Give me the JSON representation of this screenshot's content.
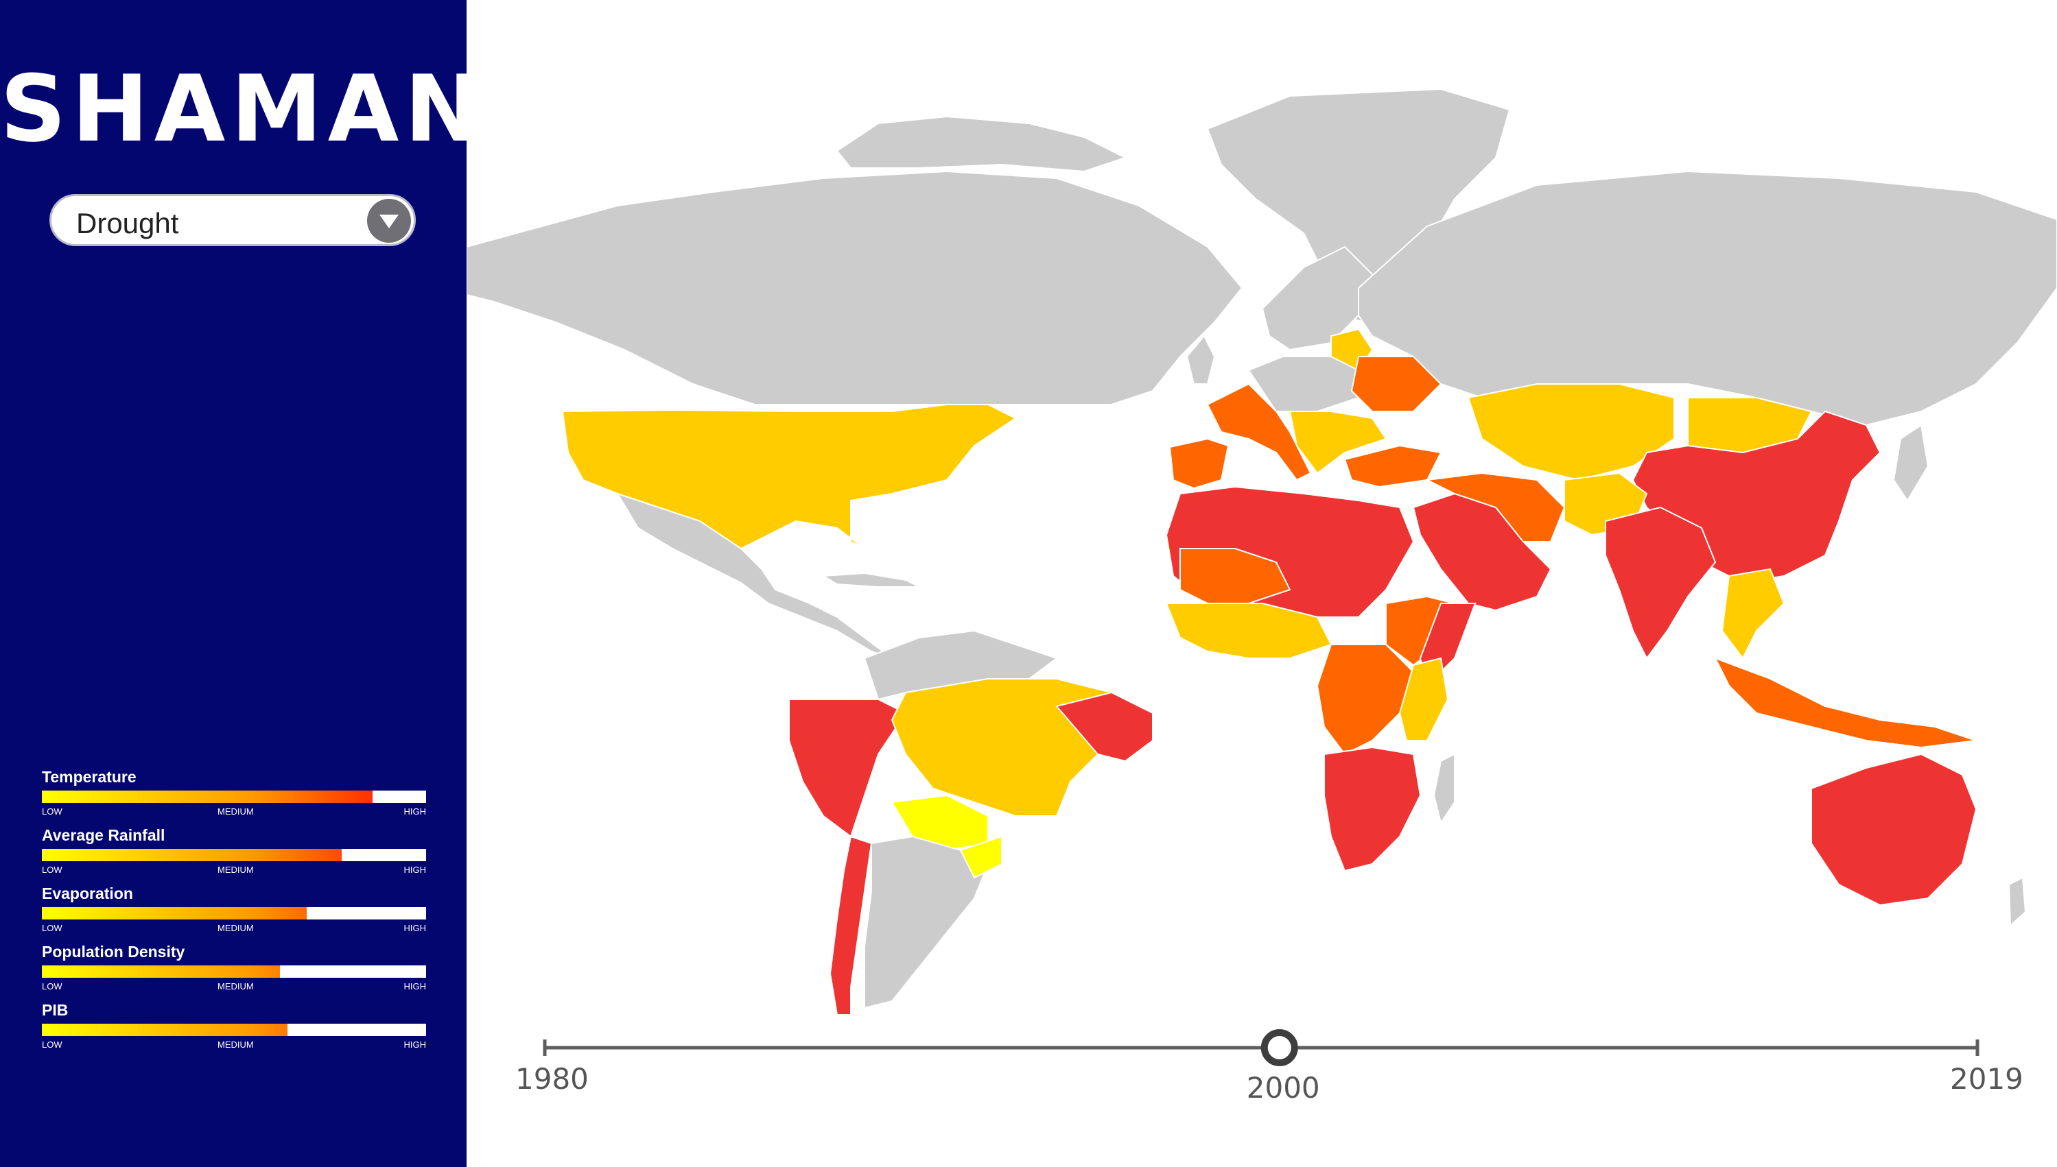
{
  "app": {
    "logo_text": "SHAMAN"
  },
  "hazard_select": {
    "value": "Drought",
    "icon": "chevron-down-icon"
  },
  "legend": {
    "items": [
      {
        "title": "Temperature",
        "level": 0.86
      },
      {
        "title": "Average Rainfall",
        "level": 0.78
      },
      {
        "title": "Evaporation",
        "level": 0.69
      },
      {
        "title": "Population Density",
        "level": 0.62
      },
      {
        "title": "PIB",
        "level": 0.64
      }
    ],
    "tick_low": "LOW",
    "tick_medium": "MEDIUM",
    "tick_high": "HIGH",
    "gradient": [
      "#ffff00",
      "#ff9900",
      "#ff0000"
    ]
  },
  "timeline": {
    "start_label": "1980",
    "current_label": "2000",
    "end_label": "2019",
    "start_year": 1980,
    "end_year": 2019,
    "current_year": 2000
  },
  "map": {
    "colors": {
      "none": "#cccccc",
      "low": "#ffff00",
      "low_medium": "#ffcc00",
      "medium_high": "#ff6600",
      "high": "#ee3333"
    }
  }
}
